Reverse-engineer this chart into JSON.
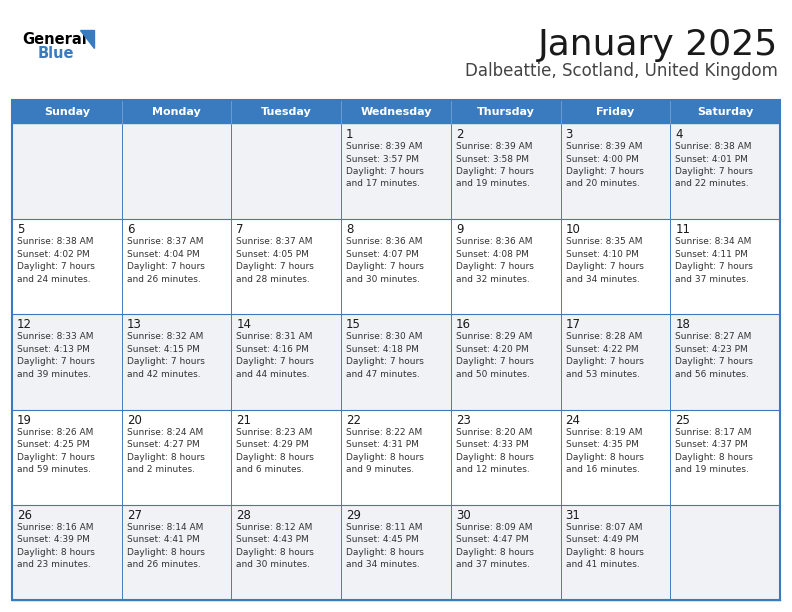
{
  "title": "January 2025",
  "subtitle": "Dalbeattie, Scotland, United Kingdom",
  "header_color": "#3a7bbf",
  "header_text_color": "#ffffff",
  "row_bg_odd": "#f0f2f5",
  "row_bg_even": "#ffffff",
  "border_color": "#3a7bbf",
  "text_color": "#333333",
  "days_of_week": [
    "Sunday",
    "Monday",
    "Tuesday",
    "Wednesday",
    "Thursday",
    "Friday",
    "Saturday"
  ],
  "calendar_data": [
    [
      null,
      null,
      null,
      {
        "day": 1,
        "sunrise": "8:39 AM",
        "sunset": "3:57 PM",
        "daylight": "7 hours and 17 minutes."
      },
      {
        "day": 2,
        "sunrise": "8:39 AM",
        "sunset": "3:58 PM",
        "daylight": "7 hours and 19 minutes."
      },
      {
        "day": 3,
        "sunrise": "8:39 AM",
        "sunset": "4:00 PM",
        "daylight": "7 hours and 20 minutes."
      },
      {
        "day": 4,
        "sunrise": "8:38 AM",
        "sunset": "4:01 PM",
        "daylight": "7 hours and 22 minutes."
      }
    ],
    [
      {
        "day": 5,
        "sunrise": "8:38 AM",
        "sunset": "4:02 PM",
        "daylight": "7 hours and 24 minutes."
      },
      {
        "day": 6,
        "sunrise": "8:37 AM",
        "sunset": "4:04 PM",
        "daylight": "7 hours and 26 minutes."
      },
      {
        "day": 7,
        "sunrise": "8:37 AM",
        "sunset": "4:05 PM",
        "daylight": "7 hours and 28 minutes."
      },
      {
        "day": 8,
        "sunrise": "8:36 AM",
        "sunset": "4:07 PM",
        "daylight": "7 hours and 30 minutes."
      },
      {
        "day": 9,
        "sunrise": "8:36 AM",
        "sunset": "4:08 PM",
        "daylight": "7 hours and 32 minutes."
      },
      {
        "day": 10,
        "sunrise": "8:35 AM",
        "sunset": "4:10 PM",
        "daylight": "7 hours and 34 minutes."
      },
      {
        "day": 11,
        "sunrise": "8:34 AM",
        "sunset": "4:11 PM",
        "daylight": "7 hours and 37 minutes."
      }
    ],
    [
      {
        "day": 12,
        "sunrise": "8:33 AM",
        "sunset": "4:13 PM",
        "daylight": "7 hours and 39 minutes."
      },
      {
        "day": 13,
        "sunrise": "8:32 AM",
        "sunset": "4:15 PM",
        "daylight": "7 hours and 42 minutes."
      },
      {
        "day": 14,
        "sunrise": "8:31 AM",
        "sunset": "4:16 PM",
        "daylight": "7 hours and 44 minutes."
      },
      {
        "day": 15,
        "sunrise": "8:30 AM",
        "sunset": "4:18 PM",
        "daylight": "7 hours and 47 minutes."
      },
      {
        "day": 16,
        "sunrise": "8:29 AM",
        "sunset": "4:20 PM",
        "daylight": "7 hours and 50 minutes."
      },
      {
        "day": 17,
        "sunrise": "8:28 AM",
        "sunset": "4:22 PM",
        "daylight": "7 hours and 53 minutes."
      },
      {
        "day": 18,
        "sunrise": "8:27 AM",
        "sunset": "4:23 PM",
        "daylight": "7 hours and 56 minutes."
      }
    ],
    [
      {
        "day": 19,
        "sunrise": "8:26 AM",
        "sunset": "4:25 PM",
        "daylight": "7 hours and 59 minutes."
      },
      {
        "day": 20,
        "sunrise": "8:24 AM",
        "sunset": "4:27 PM",
        "daylight": "8 hours and 2 minutes."
      },
      {
        "day": 21,
        "sunrise": "8:23 AM",
        "sunset": "4:29 PM",
        "daylight": "8 hours and 6 minutes."
      },
      {
        "day": 22,
        "sunrise": "8:22 AM",
        "sunset": "4:31 PM",
        "daylight": "8 hours and 9 minutes."
      },
      {
        "day": 23,
        "sunrise": "8:20 AM",
        "sunset": "4:33 PM",
        "daylight": "8 hours and 12 minutes."
      },
      {
        "day": 24,
        "sunrise": "8:19 AM",
        "sunset": "4:35 PM",
        "daylight": "8 hours and 16 minutes."
      },
      {
        "day": 25,
        "sunrise": "8:17 AM",
        "sunset": "4:37 PM",
        "daylight": "8 hours and 19 minutes."
      }
    ],
    [
      {
        "day": 26,
        "sunrise": "8:16 AM",
        "sunset": "4:39 PM",
        "daylight": "8 hours and 23 minutes."
      },
      {
        "day": 27,
        "sunrise": "8:14 AM",
        "sunset": "4:41 PM",
        "daylight": "8 hours and 26 minutes."
      },
      {
        "day": 28,
        "sunrise": "8:12 AM",
        "sunset": "4:43 PM",
        "daylight": "8 hours and 30 minutes."
      },
      {
        "day": 29,
        "sunrise": "8:11 AM",
        "sunset": "4:45 PM",
        "daylight": "8 hours and 34 minutes."
      },
      {
        "day": 30,
        "sunrise": "8:09 AM",
        "sunset": "4:47 PM",
        "daylight": "8 hours and 37 minutes."
      },
      {
        "day": 31,
        "sunrise": "8:07 AM",
        "sunset": "4:49 PM",
        "daylight": "8 hours and 41 minutes."
      },
      null
    ]
  ]
}
